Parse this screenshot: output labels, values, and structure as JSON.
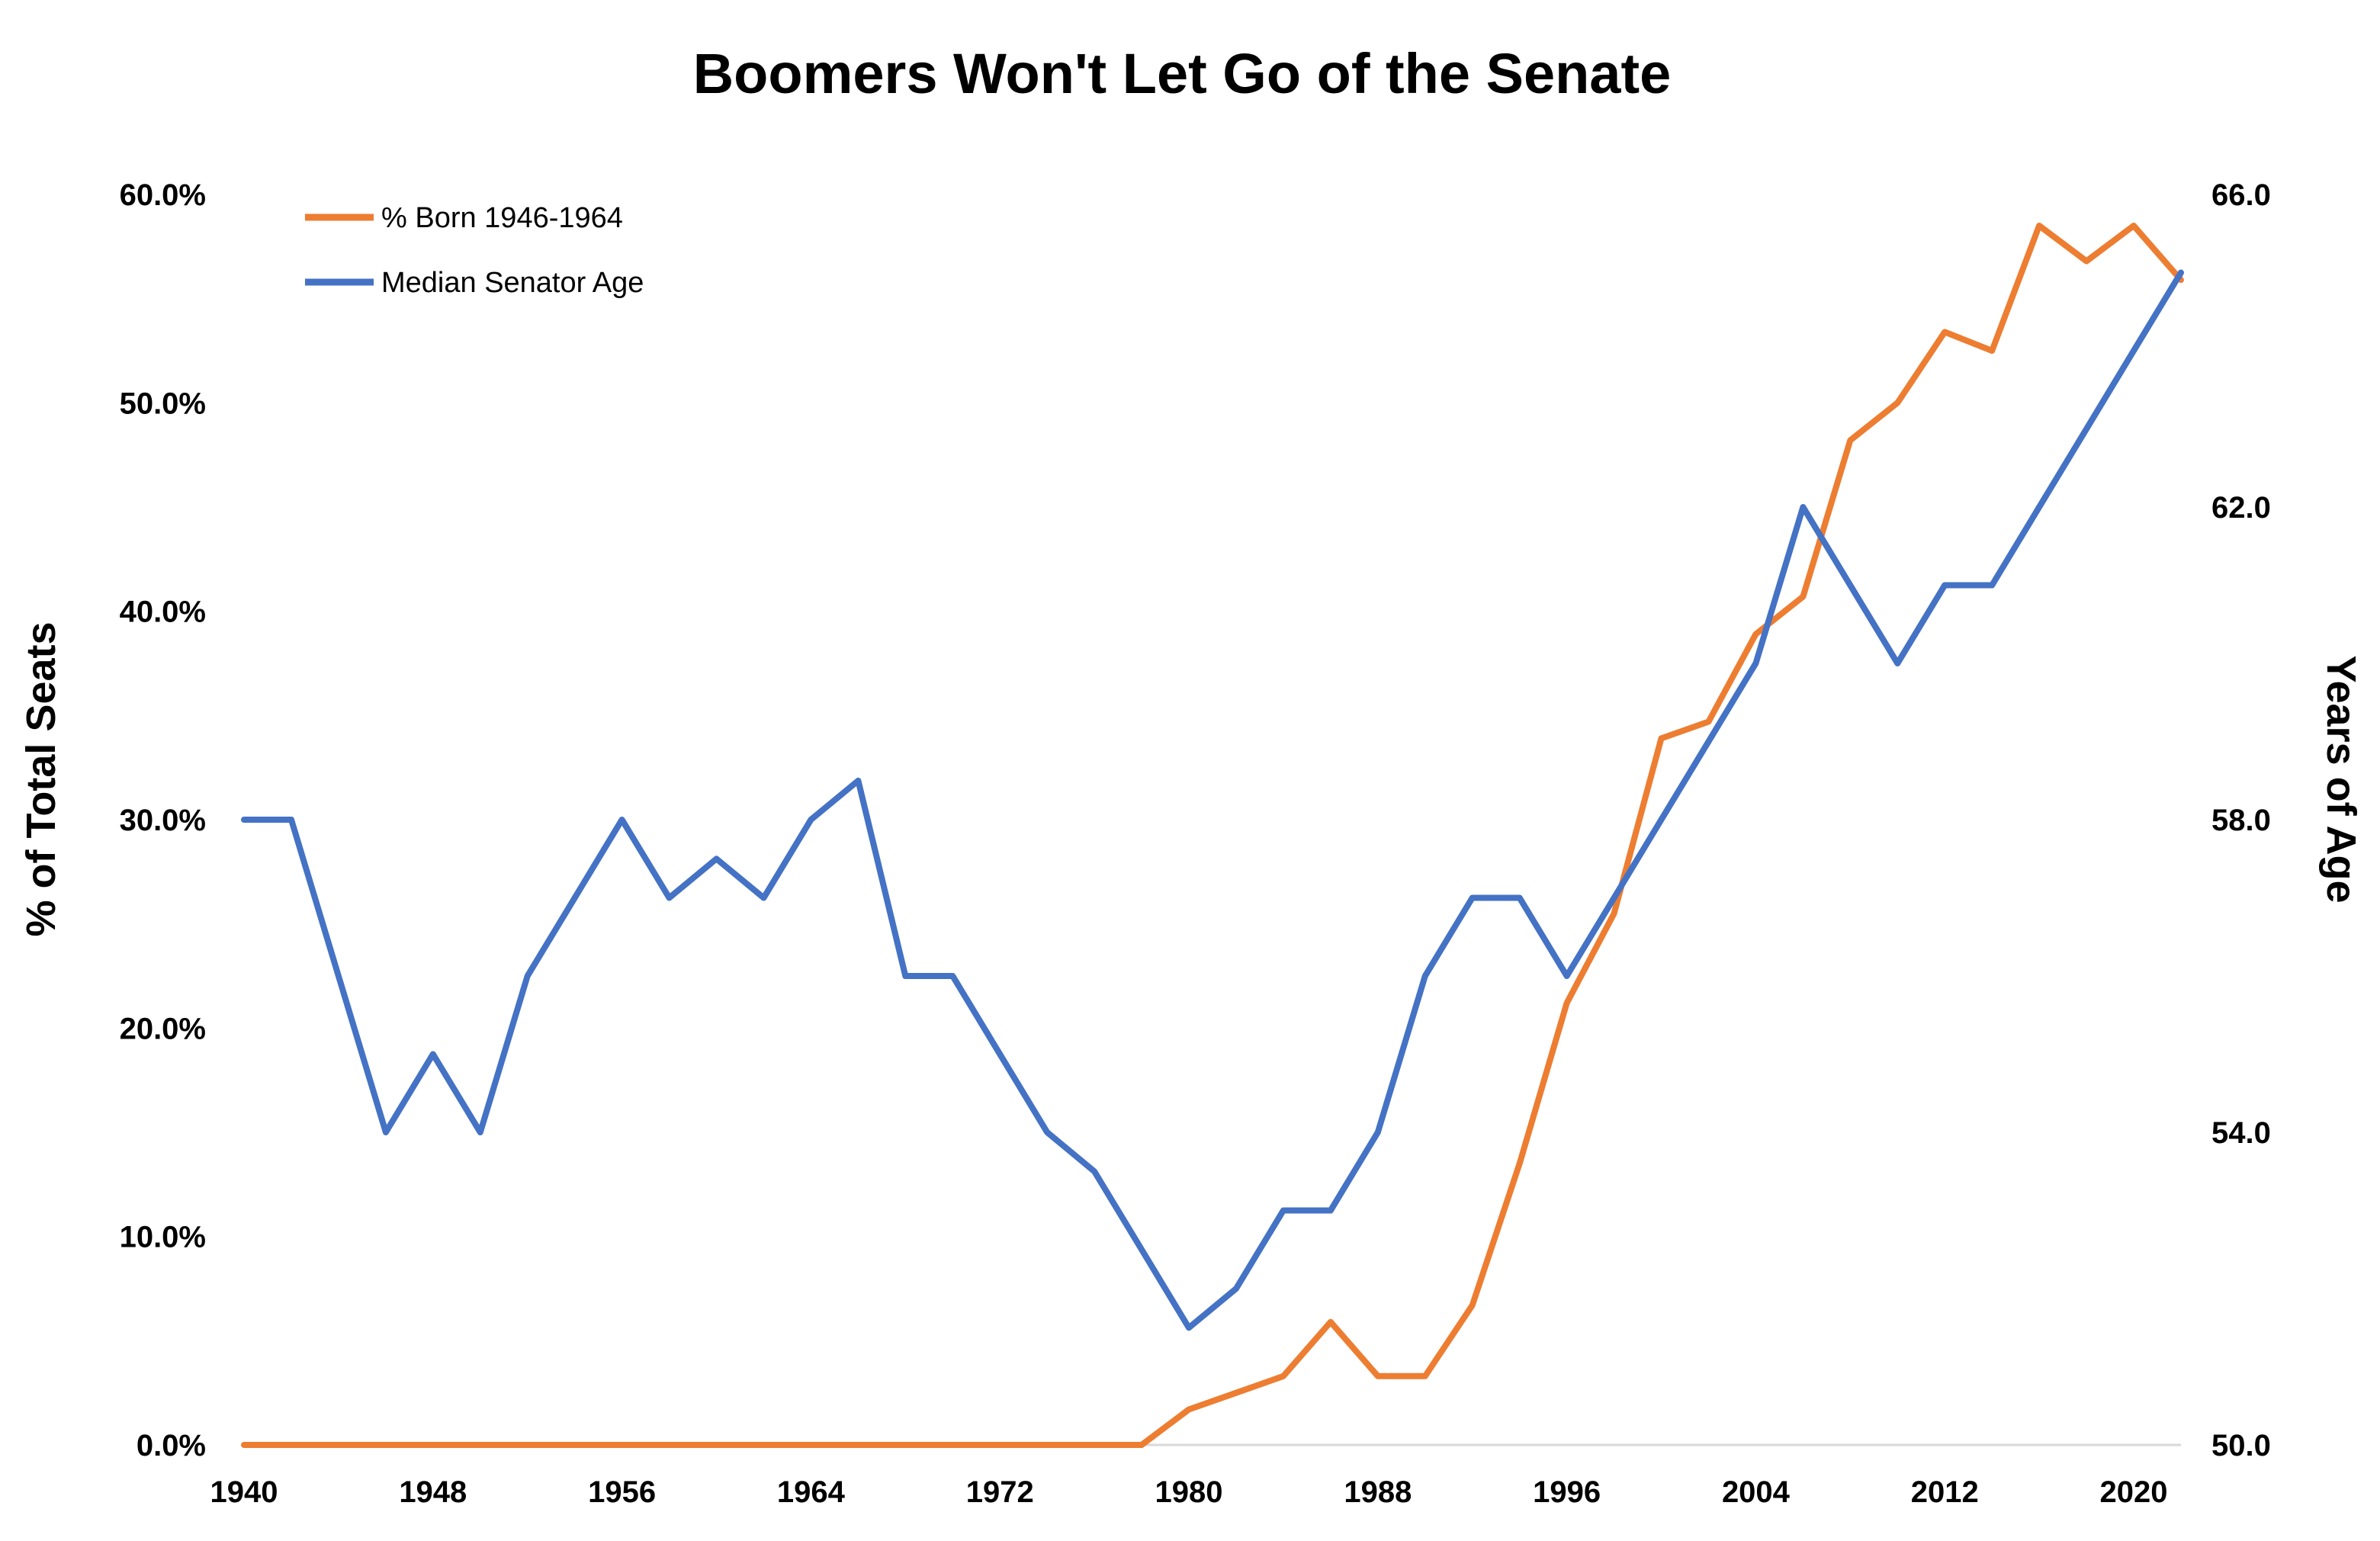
{
  "chart_data": {
    "type": "line",
    "title": "Boomers Won't Let Go of the Senate",
    "ylabel_left": "% of Total Seats",
    "ylabel_right": "Years of Age",
    "xlim": [
      1940,
      2022
    ],
    "x_ticks": [
      "1940",
      "1948",
      "1956",
      "1964",
      "1972",
      "1980",
      "1988",
      "1996",
      "2004",
      "2012",
      "2020"
    ],
    "ylim_left": [
      0,
      60
    ],
    "y_ticks_left": [
      "0.0%",
      "10.0%",
      "20.0%",
      "30.0%",
      "40.0%",
      "50.0%",
      "60.0%"
    ],
    "ylim_right": [
      50,
      66
    ],
    "y_ticks_right": [
      "50.0",
      "54.0",
      "58.0",
      "62.0",
      "66.0"
    ],
    "legend_position": "top-left",
    "series": [
      {
        "name": "% Born 1946-1964",
        "axis": "left",
        "color": "#ED7D31",
        "x": [
          1940,
          1942,
          1944,
          1946,
          1948,
          1950,
          1952,
          1954,
          1956,
          1958,
          1960,
          1962,
          1964,
          1966,
          1968,
          1970,
          1972,
          1974,
          1976,
          1978,
          1980,
          1982,
          1984,
          1986,
          1988,
          1990,
          1992,
          1994,
          1996,
          1998,
          2000,
          2002,
          2004,
          2006,
          2008,
          2010,
          2012,
          2014,
          2016,
          2018,
          2020,
          2022
        ],
        "values": [
          0,
          0,
          0,
          0,
          0,
          0,
          0,
          0,
          0,
          0,
          0,
          0,
          0,
          0,
          0,
          0,
          0,
          0,
          0,
          0,
          1.7,
          2.5,
          3.3,
          5.9,
          3.3,
          3.3,
          6.7,
          13.5,
          21.2,
          25.5,
          33.9,
          34.7,
          38.9,
          40.7,
          48.2,
          50.0,
          53.4,
          52.5,
          58.5,
          56.8,
          58.5,
          55.9
        ]
      },
      {
        "name": "Median Senator Age",
        "axis": "right",
        "color": "#4472C4",
        "x": [
          1940,
          1942,
          1944,
          1946,
          1948,
          1950,
          1952,
          1954,
          1956,
          1958,
          1960,
          1962,
          1964,
          1966,
          1968,
          1970,
          1972,
          1974,
          1976,
          1978,
          1980,
          1982,
          1984,
          1986,
          1988,
          1990,
          1992,
          1994,
          1996,
          1998,
          2000,
          2002,
          2004,
          2006,
          2008,
          2010,
          2012,
          2014,
          2016,
          2018,
          2020,
          2022
        ],
        "values": [
          58,
          58,
          56,
          54,
          55,
          54,
          56,
          57,
          58,
          57,
          57.5,
          57,
          58,
          58.5,
          56,
          56,
          55,
          54,
          53.5,
          52.5,
          51.5,
          52,
          53,
          53,
          54,
          56,
          57,
          57,
          56,
          57,
          58,
          59,
          60,
          62,
          61,
          60,
          61,
          61,
          62,
          63,
          64,
          65
        ]
      }
    ]
  }
}
